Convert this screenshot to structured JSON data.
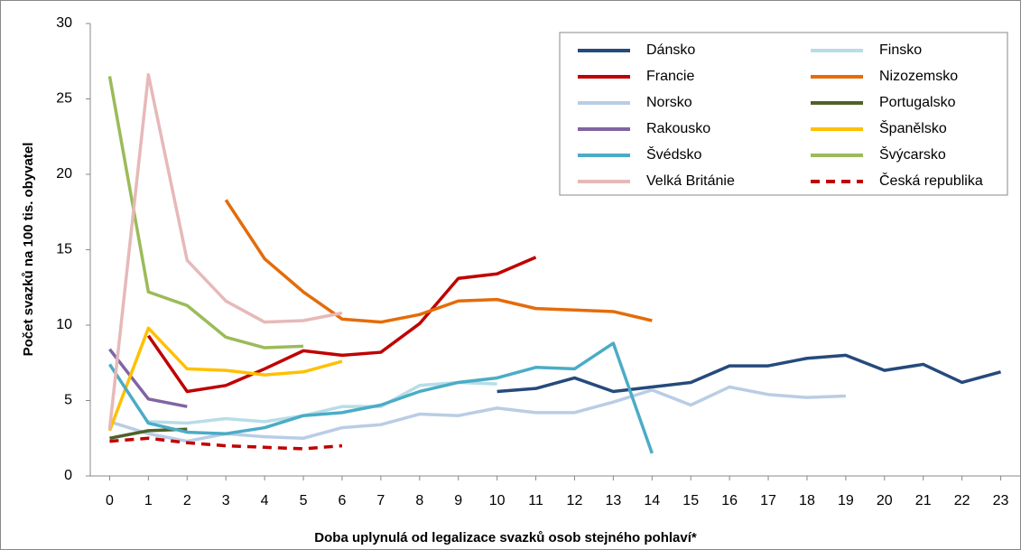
{
  "chart_data": {
    "type": "line",
    "x_label": "Doba uplynulá od legalizace svazků osob stejného pohlaví*",
    "y_label": "Počet svazků na 100 tis. obyvatel",
    "x": [
      0,
      1,
      2,
      3,
      4,
      5,
      6,
      7,
      8,
      9,
      10,
      11,
      12,
      13,
      14,
      15,
      16,
      17,
      18,
      19,
      20,
      21,
      22,
      23
    ],
    "xlim": [
      -0.5,
      23.5
    ],
    "xticks": [
      0,
      1,
      2,
      3,
      4,
      5,
      6,
      7,
      8,
      9,
      10,
      11,
      12,
      13,
      14,
      15,
      16,
      17,
      18,
      19,
      20,
      21,
      22,
      23
    ],
    "ylim": [
      0,
      30
    ],
    "yticks": [
      0,
      5,
      10,
      15,
      20,
      25,
      30
    ],
    "legend": "top-right",
    "series": [
      {
        "name": "Dánsko",
        "color": "#254a7c",
        "values": [
          null,
          null,
          null,
          null,
          null,
          null,
          null,
          null,
          null,
          null,
          5.6,
          5.8,
          6.5,
          5.6,
          5.9,
          6.2,
          7.3,
          7.3,
          7.8,
          8.0,
          7.0,
          7.4,
          6.2,
          6.9
        ]
      },
      {
        "name": "Finsko",
        "color": "#b7dde8",
        "values": [
          null,
          3.6,
          3.5,
          3.8,
          3.6,
          4.0,
          4.6,
          4.6,
          6.0,
          6.2,
          6.1,
          null,
          null,
          null,
          null,
          null,
          null,
          null,
          null,
          null,
          null,
          null,
          null,
          null
        ]
      },
      {
        "name": "Francie",
        "color": "#c00000",
        "values": [
          null,
          9.3,
          5.6,
          6.0,
          7.1,
          8.3,
          8.0,
          8.2,
          10.1,
          13.1,
          13.4,
          14.5,
          null,
          null,
          null,
          null,
          null,
          null,
          null,
          null,
          null,
          null,
          null,
          null
        ]
      },
      {
        "name": "Nizozemsko",
        "color": "#e46c0a",
        "values": [
          null,
          null,
          null,
          18.3,
          14.4,
          12.2,
          10.4,
          10.2,
          10.7,
          11.6,
          11.7,
          11.1,
          11.0,
          10.9,
          10.3,
          null,
          null,
          null,
          null,
          null,
          null,
          null,
          null,
          null
        ]
      },
      {
        "name": "Norsko",
        "color": "#b9cde5",
        "values": [
          3.6,
          2.8,
          2.3,
          2.8,
          2.6,
          2.5,
          3.2,
          3.4,
          4.1,
          4.0,
          4.5,
          4.2,
          4.2,
          4.9,
          5.7,
          4.7,
          5.9,
          5.4,
          5.2,
          5.3,
          null,
          null,
          null,
          null
        ]
      },
      {
        "name": "Portugalsko",
        "color": "#4f6228",
        "values": [
          2.5,
          3.0,
          3.1,
          null,
          null,
          null,
          null,
          null,
          null,
          null,
          null,
          null,
          null,
          null,
          null,
          null,
          null,
          null,
          null,
          null,
          null,
          null,
          null,
          null
        ]
      },
      {
        "name": "Rakousko",
        "color": "#8064a2",
        "values": [
          8.4,
          5.1,
          4.6,
          null,
          null,
          null,
          null,
          null,
          null,
          null,
          null,
          null,
          null,
          null,
          null,
          null,
          null,
          null,
          null,
          null,
          null,
          null,
          null,
          null
        ]
      },
      {
        "name": "Španělsko",
        "color": "#ffc000",
        "values": [
          3.0,
          9.8,
          7.1,
          7.0,
          6.7,
          6.9,
          7.6,
          null,
          null,
          null,
          null,
          null,
          null,
          null,
          null,
          null,
          null,
          null,
          null,
          null,
          null,
          null,
          null,
          null
        ]
      },
      {
        "name": "Švédsko",
        "color": "#4bacc6",
        "values": [
          7.4,
          3.5,
          2.9,
          2.8,
          3.2,
          4.0,
          4.2,
          4.7,
          5.6,
          6.2,
          6.5,
          7.2,
          7.1,
          8.8,
          1.5,
          null,
          null,
          null,
          null,
          null,
          null,
          null,
          null,
          null
        ]
      },
      {
        "name": "Švýcarsko",
        "color": "#9bbb59",
        "values": [
          26.5,
          12.2,
          11.3,
          9.2,
          8.5,
          8.6,
          null,
          null,
          null,
          null,
          null,
          null,
          null,
          null,
          null,
          null,
          null,
          null,
          null,
          null,
          null,
          null,
          null,
          null
        ]
      },
      {
        "name": "Velká Británie",
        "color": "#e6b9b8",
        "values": [
          3.1,
          26.6,
          14.3,
          11.6,
          10.2,
          10.3,
          10.8,
          null,
          null,
          null,
          null,
          null,
          null,
          null,
          null,
          null,
          null,
          null,
          null,
          null,
          null,
          null,
          null,
          null
        ]
      },
      {
        "name": "Česká republika",
        "color": "#c00000",
        "dash": true,
        "values": [
          2.3,
          2.5,
          2.2,
          2.0,
          1.9,
          1.8,
          2.0,
          null,
          null,
          null,
          null,
          null,
          null,
          null,
          null,
          null,
          null,
          null,
          null,
          null,
          null,
          null,
          null,
          null
        ]
      }
    ]
  }
}
